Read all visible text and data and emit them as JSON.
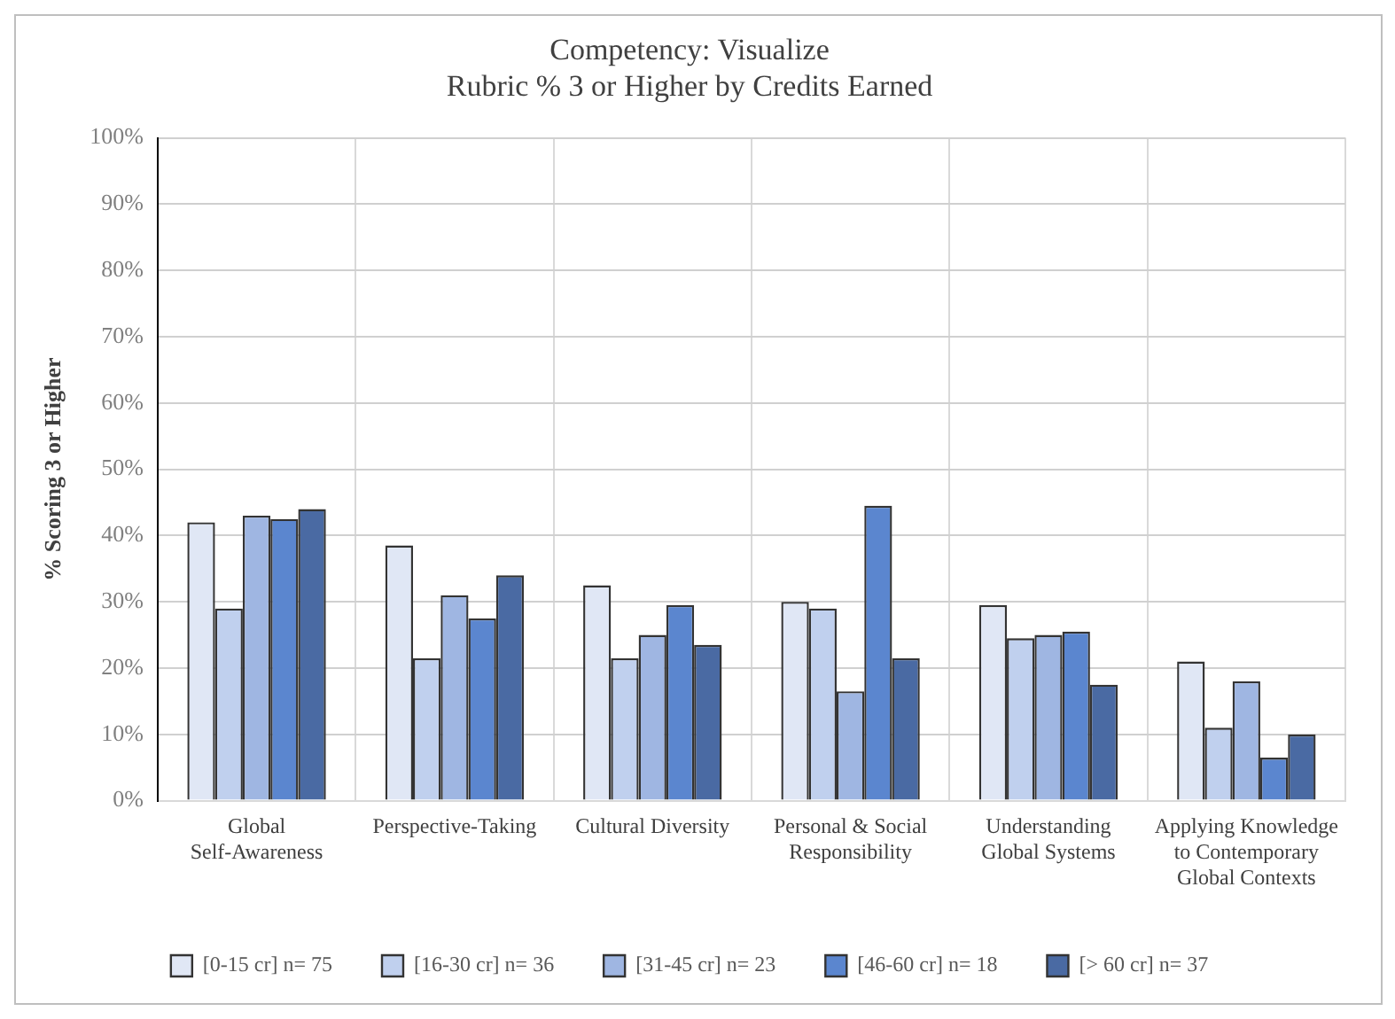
{
  "chart_data": {
    "type": "bar",
    "title": "Competency: Visualize",
    "subtitle": "Rubric % 3 or Higher by Credits Earned",
    "ylabel": "% Scoring 3 or Higher",
    "categories": [
      "Global Self-Awareness",
      "Perspective-Taking",
      "Cultural Diversity",
      "Personal & Social Responsibility",
      "Understanding Global Systems",
      "Applying Knowledge to Contemporary Global Contexts"
    ],
    "series": [
      {
        "name": "[0-15 cr] n= 75",
        "color": "#e0e7f5",
        "values": [
          42,
          38.5,
          32.5,
          30,
          29.5,
          21
        ]
      },
      {
        "name": "[16-30 cr] n= 36",
        "color": "#c0d0ee",
        "values": [
          29,
          21.5,
          21.5,
          29,
          24.5,
          11
        ]
      },
      {
        "name": "[31-45 cr] n= 23",
        "color": "#9fb6e2",
        "values": [
          43,
          31,
          25,
          16.5,
          25,
          18
        ]
      },
      {
        "name": "[46-60 cr] n= 18",
        "color": "#5b86cf",
        "values": [
          42.5,
          27.5,
          29.5,
          44.5,
          25.5,
          6.5
        ]
      },
      {
        "name": "[> 60 cr] n= 37",
        "color": "#4a6aa3",
        "values": [
          44,
          34,
          23.5,
          21.5,
          17.5,
          10
        ]
      }
    ],
    "ylim": [
      0,
      100
    ],
    "yticks": [
      {
        "value": 0,
        "label": "0%"
      },
      {
        "value": 10,
        "label": "10%"
      },
      {
        "value": 20,
        "label": "20%"
      },
      {
        "value": 30,
        "label": "30%"
      },
      {
        "value": 40,
        "label": "40%"
      },
      {
        "value": 50,
        "label": "50%"
      },
      {
        "value": 60,
        "label": "60%"
      },
      {
        "value": 70,
        "label": "70%"
      },
      {
        "value": 80,
        "label": "80%"
      },
      {
        "value": 90,
        "label": "90%"
      },
      {
        "value": 100,
        "label": "100%"
      }
    ],
    "grid": true,
    "legend": "bottom"
  }
}
